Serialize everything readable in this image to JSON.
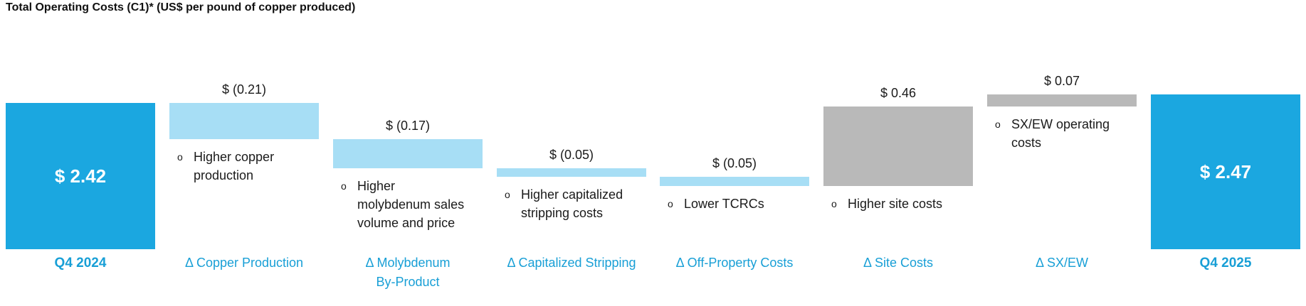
{
  "title": "Total Operating Costs (C1)* (US$ per pound of copper produced)",
  "bullet_char": "o",
  "colors": {
    "total_bar": "#1ba7e0",
    "decrease_bar": "#a7def5",
    "increase_bar": "#b9b9b9",
    "category_label": "#189fd6",
    "value_label": "#1a1a1a",
    "total_value_text": "#ffffff"
  },
  "chart_data": {
    "type": "bar",
    "subtype": "waterfall",
    "title": "Total Operating Costs (C1)* (US$ per pound of copper produced)",
    "unit": "US$ per pound of copper produced",
    "start_total": 2.42,
    "end_total": 2.47,
    "legend": "none",
    "grid": false,
    "columns": [
      {
        "category": "Q4 2024",
        "category_lines": [
          "Q4 2024"
        ],
        "kind": "total",
        "value": 2.42,
        "value_label": "$ 2.42",
        "bullets": []
      },
      {
        "category": "Δ Copper Production",
        "category_lines": [
          "Δ Copper Production"
        ],
        "kind": "decrease",
        "value": -0.21,
        "value_label": "$ (0.21)",
        "bullets": [
          {
            "lines": [
              "Higher copper",
              "production"
            ]
          }
        ]
      },
      {
        "category": "Δ Molybdenum By-Product",
        "category_lines": [
          "Δ Molybdenum",
          "By-Product"
        ],
        "kind": "decrease",
        "value": -0.17,
        "value_label": "$ (0.17)",
        "bullets": [
          {
            "lines": [
              "Higher",
              "molybdenum sales",
              "volume and price"
            ]
          }
        ]
      },
      {
        "category": "Δ Capitalized Stripping",
        "category_lines": [
          "Δ Capitalized Stripping"
        ],
        "kind": "decrease",
        "value": -0.05,
        "value_label": "$ (0.05)",
        "bullets": [
          {
            "lines": [
              "Higher capitalized",
              "stripping costs"
            ]
          }
        ]
      },
      {
        "category": "Δ Off-Property Costs",
        "category_lines": [
          "Δ Off-Property Costs"
        ],
        "kind": "decrease",
        "value": -0.05,
        "value_label": "$ (0.05)",
        "bullets": [
          {
            "lines": [
              "Lower TCRCs"
            ]
          }
        ]
      },
      {
        "category": "Δ Site Costs",
        "category_lines": [
          "Δ Site Costs"
        ],
        "kind": "increase",
        "value": 0.46,
        "value_label": "$ 0.46",
        "bullets": [
          {
            "lines": [
              "Higher site costs"
            ]
          }
        ]
      },
      {
        "category": "Δ SX/EW",
        "category_lines": [
          "Δ SX/EW"
        ],
        "kind": "increase",
        "value": 0.07,
        "value_label": "$ 0.07",
        "bullets": [
          {
            "lines": [
              "SX/EW operating",
              "costs"
            ]
          }
        ]
      },
      {
        "category": "Q4 2025",
        "category_lines": [
          "Q4 2025"
        ],
        "kind": "total",
        "value": 2.47,
        "value_label": "$ 2.47",
        "bullets": []
      }
    ]
  }
}
